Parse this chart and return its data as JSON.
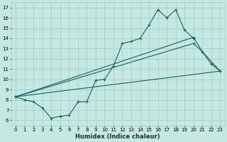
{
  "xlabel": "Humidex (Indice chaleur)",
  "xlim": [
    -0.5,
    23.5
  ],
  "ylim": [
    5.5,
    17.5
  ],
  "xticks": [
    0,
    1,
    2,
    3,
    4,
    5,
    6,
    7,
    8,
    9,
    10,
    11,
    12,
    13,
    14,
    15,
    16,
    17,
    18,
    19,
    20,
    21,
    22,
    23
  ],
  "yticks": [
    6,
    7,
    8,
    9,
    10,
    11,
    12,
    13,
    14,
    15,
    16,
    17
  ],
  "bg_color": "#c5e8e2",
  "grid_color": "#9eccc4",
  "line_color": "#1a6060",
  "line1": [
    [
      0,
      8.3
    ],
    [
      1,
      8.0
    ],
    [
      2,
      7.8
    ],
    [
      3,
      7.2
    ],
    [
      4,
      6.2
    ],
    [
      5,
      6.4
    ],
    [
      6,
      6.5
    ],
    [
      7,
      7.8
    ],
    [
      8,
      7.8
    ],
    [
      9,
      9.9
    ],
    [
      10,
      10.0
    ],
    [
      11,
      11.3
    ],
    [
      12,
      13.5
    ],
    [
      13,
      13.7
    ],
    [
      14,
      14.0
    ],
    [
      15,
      15.3
    ],
    [
      16,
      16.8
    ],
    [
      17,
      16.0
    ],
    [
      18,
      16.8
    ],
    [
      19,
      14.8
    ],
    [
      20,
      14.0
    ]
  ],
  "line2": [
    [
      0,
      8.3
    ],
    [
      20,
      13.5
    ],
    [
      21,
      12.7
    ],
    [
      22,
      11.5
    ],
    [
      23,
      10.8
    ]
  ],
  "line2_straight": [
    [
      0,
      8.3
    ],
    [
      23,
      10.8
    ]
  ],
  "line3": [
    [
      0,
      8.3
    ],
    [
      20,
      14.1
    ],
    [
      21,
      12.7
    ],
    [
      23,
      10.8
    ]
  ]
}
